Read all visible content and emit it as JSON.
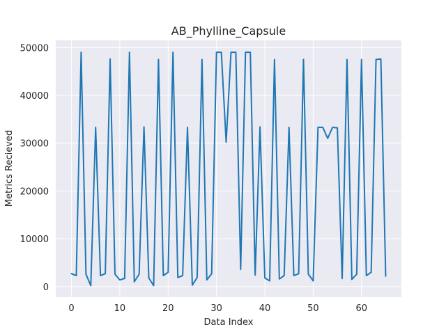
{
  "chart_data": {
    "type": "line",
    "title": "AB_Phylline_Capsule",
    "xlabel": "Data Index",
    "ylabel": "Metrics Recieved",
    "xlim": [
      -3.25,
      68.25
    ],
    "ylim": [
      -2200,
      51500
    ],
    "xticks": [
      0,
      10,
      20,
      30,
      40,
      50,
      60
    ],
    "yticks": [
      0,
      10000,
      20000,
      30000,
      40000,
      50000
    ],
    "grid": true,
    "background": "#eaeaf2",
    "line_color": "#1f77b4",
    "series": [
      {
        "x": [
          0,
          1,
          2,
          3,
          4,
          5,
          6,
          7,
          8,
          9,
          10,
          11,
          12,
          13,
          14,
          15,
          16,
          17,
          18,
          19,
          20,
          21,
          22,
          23,
          24,
          25,
          26,
          27,
          28,
          29,
          30,
          31,
          32,
          33,
          34,
          35,
          36,
          37,
          38,
          39,
          40,
          41,
          42,
          43,
          44,
          45,
          46,
          47,
          48,
          49,
          50,
          51,
          52,
          53,
          54,
          55,
          56,
          57,
          58,
          59,
          60,
          61,
          62,
          63,
          64,
          65
        ],
        "values": [
          2700,
          2300,
          49000,
          2600,
          200,
          33300,
          2300,
          2700,
          47600,
          2600,
          1400,
          1700,
          49000,
          1000,
          2600,
          33400,
          1800,
          200,
          47500,
          2300,
          3000,
          49000,
          1900,
          2300,
          33300,
          300,
          1900,
          47500,
          1400,
          2700,
          49000,
          49000,
          30200,
          49000,
          49000,
          3600,
          49000,
          49000,
          2400,
          33400,
          1800,
          1200,
          47500,
          1600,
          2300,
          33300,
          2300,
          2700,
          47500,
          2600,
          1200,
          33300,
          33300,
          31000,
          33300,
          33200,
          1700,
          47500,
          1500,
          2600,
          47500,
          2300,
          3000,
          47500,
          47600,
          2200
        ]
      }
    ]
  }
}
